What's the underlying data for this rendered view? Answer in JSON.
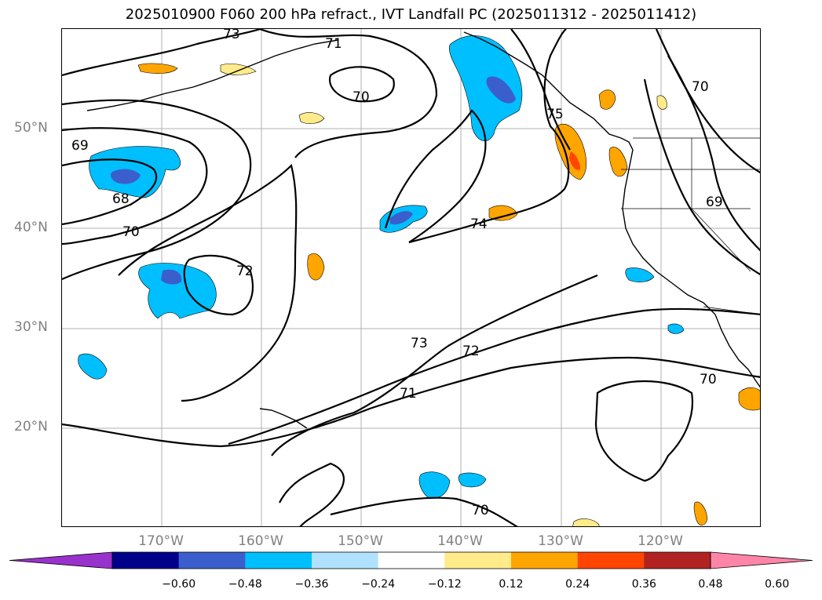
{
  "title": "2025010900 F060 200 hPa refract., IVT Landfall PC (2025011312 - 2025011412)",
  "lat_labels": [
    "50°N",
    "40°N",
    "30°N",
    "20°N"
  ],
  "lon_labels": [
    "170°W",
    "160°W",
    "150°W",
    "140°W",
    "130°W",
    "120°W"
  ],
  "contour_labels": [
    "73",
    "71",
    "70",
    "69",
    "68",
    "70",
    "72",
    "74",
    "75",
    "73",
    "72",
    "71",
    "70",
    "70",
    "70",
    "69"
  ],
  "colorbar": {
    "tick_labels": [
      "−0.60",
      "−0.48",
      "−0.36",
      "−0.24",
      "−0.12",
      "0.12",
      "0.24",
      "0.36",
      "0.48",
      "0.60"
    ],
    "colors": [
      "#9932cc",
      "#00008b",
      "#3a5fcd",
      "#00bfff",
      "#b0e2ff",
      "#ffffff",
      "#ffeb8a",
      "#ffa500",
      "#ff4500",
      "#b22222",
      "#ff85a8"
    ]
  },
  "colors": {
    "neg_strong": "#3a5fcd",
    "neg_mid": "#00bfff",
    "neg_weak": "#b0e2ff",
    "pos_weak": "#ffeb8a",
    "pos_mid": "#ffa500",
    "pos_strong": "#ff4500",
    "grid": "#b0b0b0",
    "axis_label": "#808080"
  }
}
